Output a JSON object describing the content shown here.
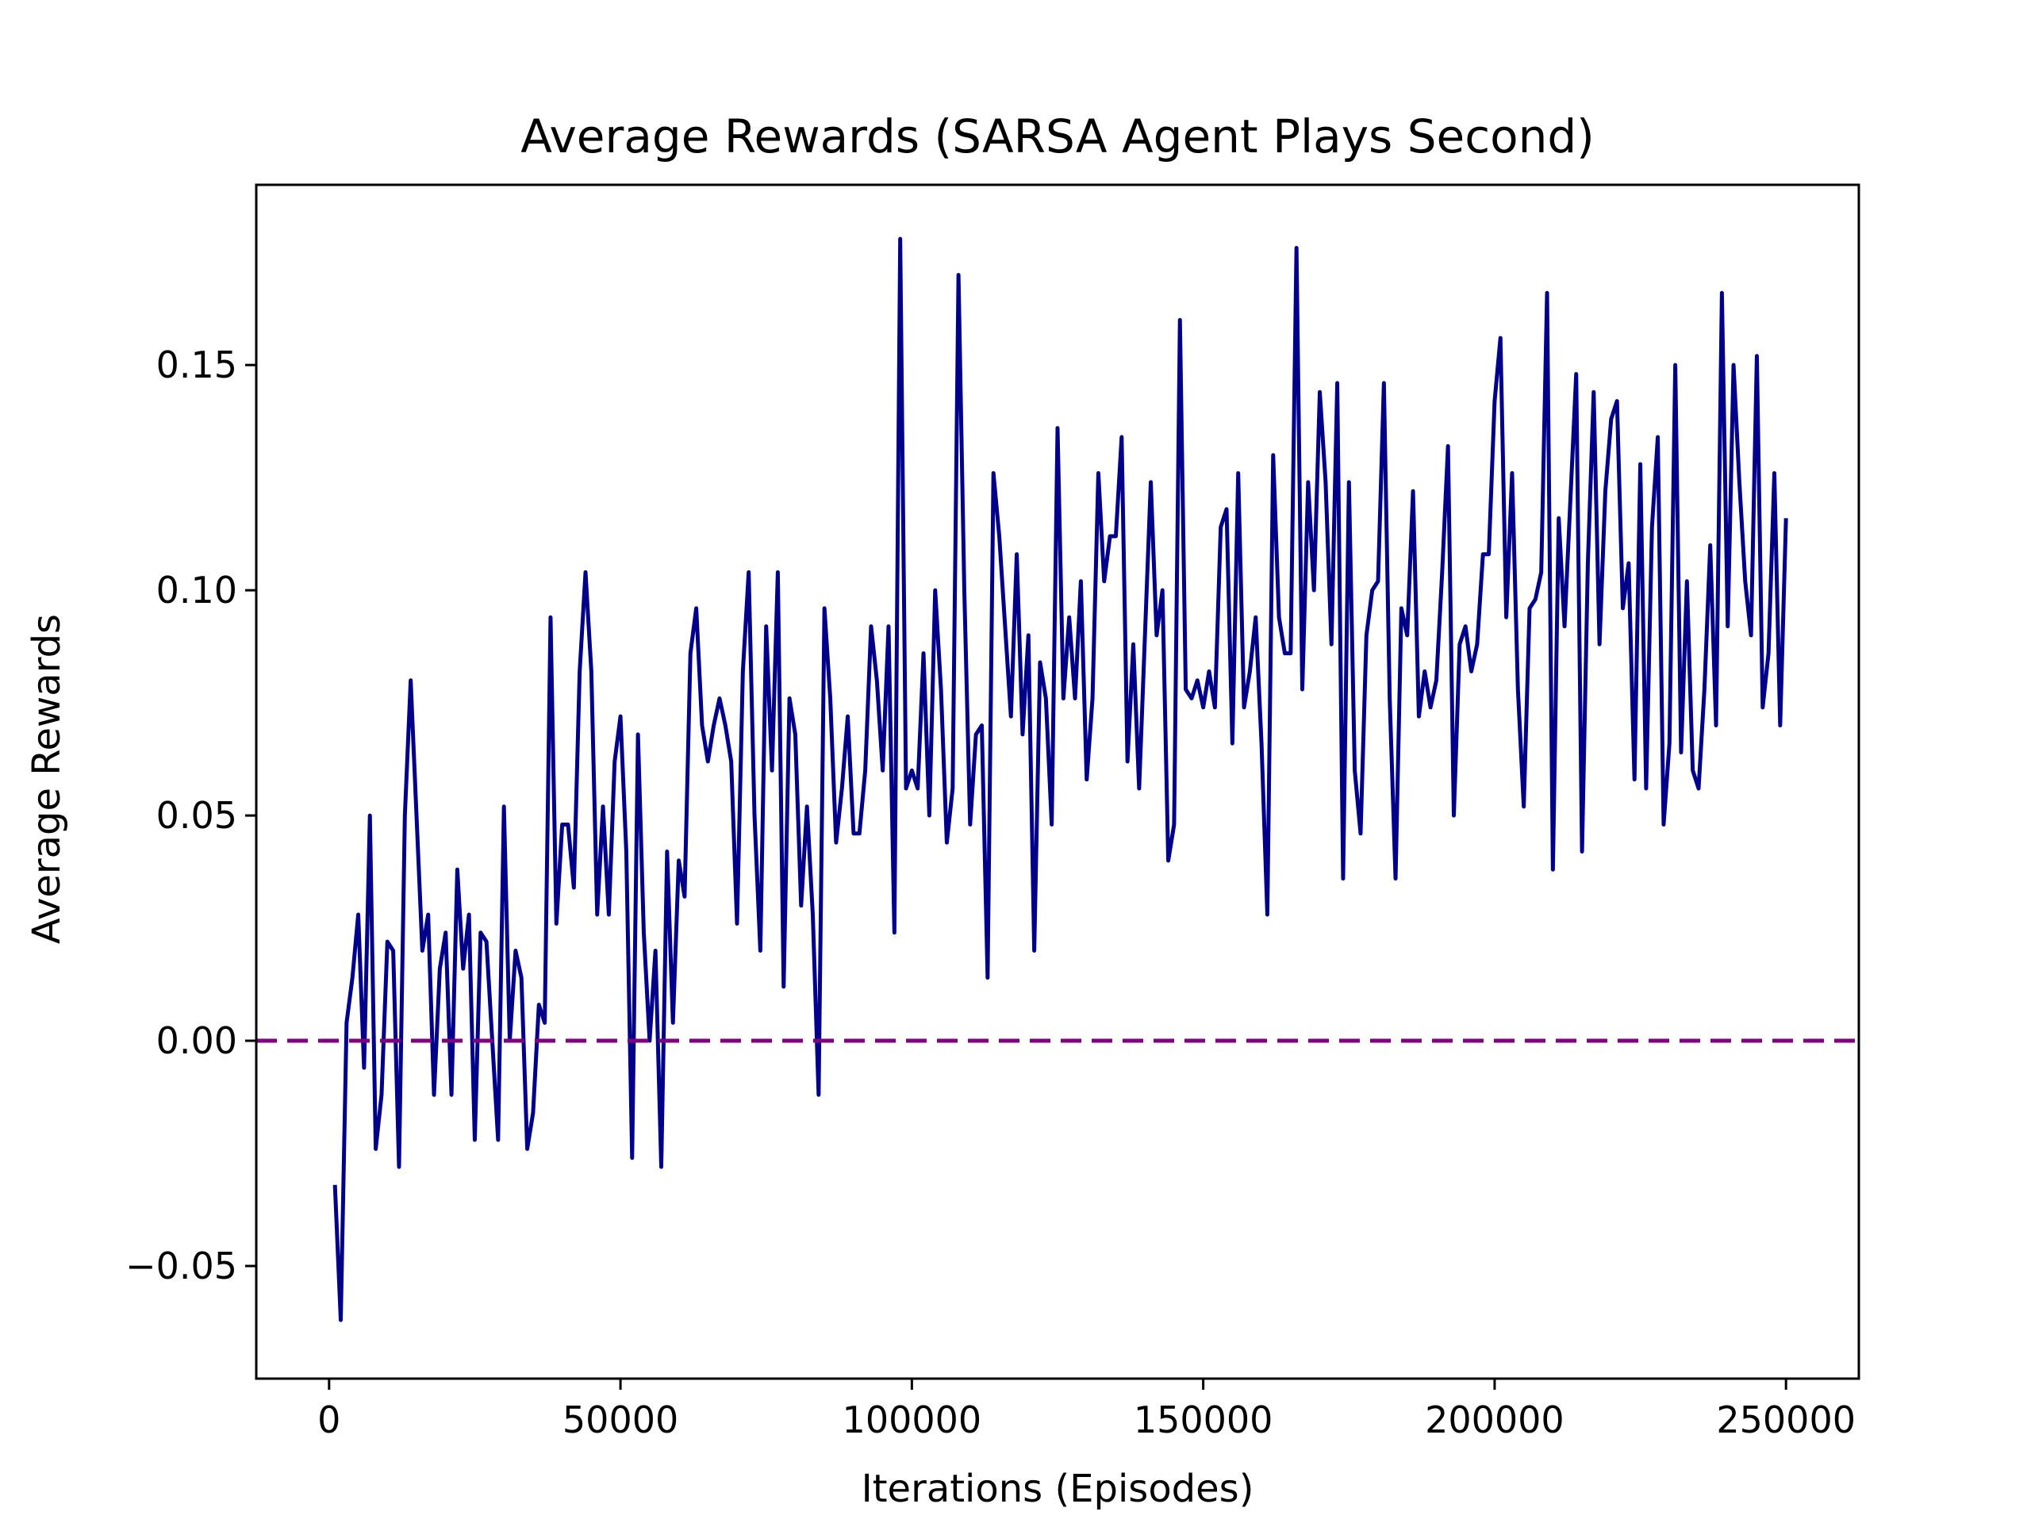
{
  "chart_data": {
    "type": "line",
    "title": "Average Rewards (SARSA Agent Plays Second)",
    "xlabel": "Iterations (Episodes)",
    "ylabel": "Average Rewards",
    "xlim": [
      -12500,
      262500
    ],
    "ylim": [
      -0.075,
      0.19
    ],
    "xticks": [
      0,
      50000,
      100000,
      150000,
      200000,
      250000
    ],
    "xtick_labels": [
      "0",
      "50000",
      "100000",
      "150000",
      "200000",
      "250000"
    ],
    "yticks": [
      -0.05,
      0.0,
      0.05,
      0.1,
      0.15
    ],
    "ytick_labels": [
      "−0.05",
      "0.00",
      "0.05",
      "0.10",
      "0.15"
    ],
    "grid": false,
    "legend": "none",
    "reference_line": {
      "y": 0.0,
      "style": "dashed",
      "color": "#800080"
    },
    "series": [
      {
        "color": "#00008b",
        "x_start": 1000,
        "x_step": 1000,
        "values": [
          -0.032,
          -0.062,
          0.004,
          0.014,
          0.028,
          -0.006,
          0.05,
          -0.024,
          -0.012,
          0.022,
          0.02,
          -0.028,
          0.05,
          0.08,
          0.05,
          0.02,
          0.028,
          -0.012,
          0.016,
          0.024,
          -0.012,
          0.038,
          0.016,
          0.028,
          -0.022,
          0.024,
          0.022,
          0.0,
          -0.022,
          0.052,
          0.0,
          0.02,
          0.014,
          -0.024,
          -0.016,
          0.008,
          0.004,
          0.094,
          0.026,
          0.048,
          0.048,
          0.034,
          0.082,
          0.104,
          0.082,
          0.028,
          0.052,
          0.028,
          0.062,
          0.072,
          0.042,
          -0.026,
          0.068,
          0.024,
          0.0,
          0.02,
          -0.028,
          0.042,
          0.004,
          0.04,
          0.032,
          0.086,
          0.096,
          0.07,
          0.062,
          0.07,
          0.076,
          0.07,
          0.062,
          0.026,
          0.082,
          0.104,
          0.05,
          0.02,
          0.092,
          0.06,
          0.104,
          0.012,
          0.076,
          0.068,
          0.03,
          0.052,
          0.028,
          -0.012,
          0.096,
          0.076,
          0.044,
          0.056,
          0.072,
          0.046,
          0.046,
          0.06,
          0.092,
          0.08,
          0.06,
          0.092,
          0.024,
          0.178,
          0.056,
          0.06,
          0.056,
          0.086,
          0.05,
          0.1,
          0.078,
          0.044,
          0.056,
          0.17,
          0.1,
          0.048,
          0.068,
          0.07,
          0.014,
          0.126,
          0.112,
          0.092,
          0.072,
          0.108,
          0.068,
          0.09,
          0.02,
          0.084,
          0.076,
          0.048,
          0.136,
          0.076,
          0.094,
          0.076,
          0.102,
          0.058,
          0.076,
          0.126,
          0.102,
          0.112,
          0.112,
          0.134,
          0.062,
          0.088,
          0.056,
          0.09,
          0.124,
          0.09,
          0.1,
          0.04,
          0.048,
          0.16,
          0.078,
          0.076,
          0.08,
          0.074,
          0.082,
          0.074,
          0.114,
          0.118,
          0.066,
          0.126,
          0.074,
          0.082,
          0.094,
          0.066,
          0.028,
          0.13,
          0.094,
          0.086,
          0.086,
          0.176,
          0.078,
          0.124,
          0.1,
          0.144,
          0.124,
          0.088,
          0.146,
          0.036,
          0.124,
          0.06,
          0.046,
          0.09,
          0.1,
          0.102,
          0.146,
          0.076,
          0.036,
          0.096,
          0.09,
          0.122,
          0.072,
          0.082,
          0.074,
          0.08,
          0.104,
          0.132,
          0.05,
          0.088,
          0.092,
          0.082,
          0.088,
          0.108,
          0.108,
          0.142,
          0.156,
          0.094,
          0.126,
          0.078,
          0.052,
          0.096,
          0.098,
          0.104,
          0.166,
          0.038,
          0.116,
          0.092,
          0.12,
          0.148,
          0.042,
          0.106,
          0.144,
          0.088,
          0.122,
          0.138,
          0.142,
          0.096,
          0.106,
          0.058,
          0.128,
          0.056,
          0.114,
          0.134,
          0.048,
          0.066,
          0.15,
          0.064,
          0.102,
          0.06,
          0.056,
          0.078,
          0.11,
          0.07,
          0.166,
          0.092,
          0.15,
          0.124,
          0.102,
          0.09,
          0.152,
          0.074,
          0.086,
          0.126,
          0.07,
          0.116
        ]
      }
    ]
  }
}
